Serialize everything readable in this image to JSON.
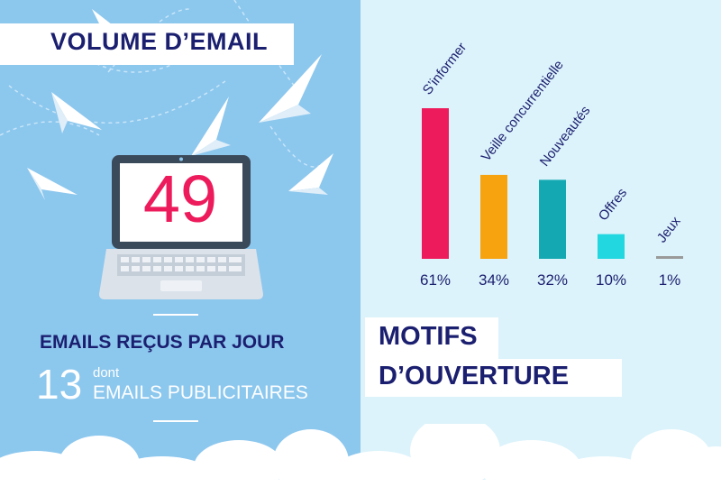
{
  "left": {
    "title": "VOLUME D’EMAIL",
    "main_number": "49",
    "emails_label": "EMAILS REÇUS PAR JOUR",
    "sub_number": "13",
    "sub_connector": "dont",
    "sub_label": "EMAILS PUBLICITAIRES"
  },
  "right": {
    "title_line1": "MOTIFS",
    "title_line2": "D’OUVERTURE"
  },
  "colors": {
    "navy": "#1b1f6f",
    "pink": "#ed1b5b",
    "left_bg": "#8cc7ee",
    "right_bg": "#dcf3fb"
  },
  "icons": [
    "paper-plane-icon",
    "laptop-icon",
    "cloud-icon"
  ],
  "chart_data": {
    "type": "bar",
    "categories": [
      "S’informer",
      "Veille concurrentielle",
      "Nouveautés",
      "Offres",
      "Jeux"
    ],
    "values": [
      61,
      34,
      32,
      10,
      1
    ],
    "value_labels": [
      "61%",
      "34%",
      "32%",
      "10%",
      "1%"
    ],
    "colors": [
      "#ed1b5b",
      "#f7a30f",
      "#14a9b2",
      "#22d7df",
      "#9a9a9a"
    ],
    "title": "MOTIFS D’OUVERTURE",
    "xlabel": "",
    "ylabel": "",
    "ylim": [
      0,
      61
    ],
    "grid": false,
    "legend": "none"
  }
}
